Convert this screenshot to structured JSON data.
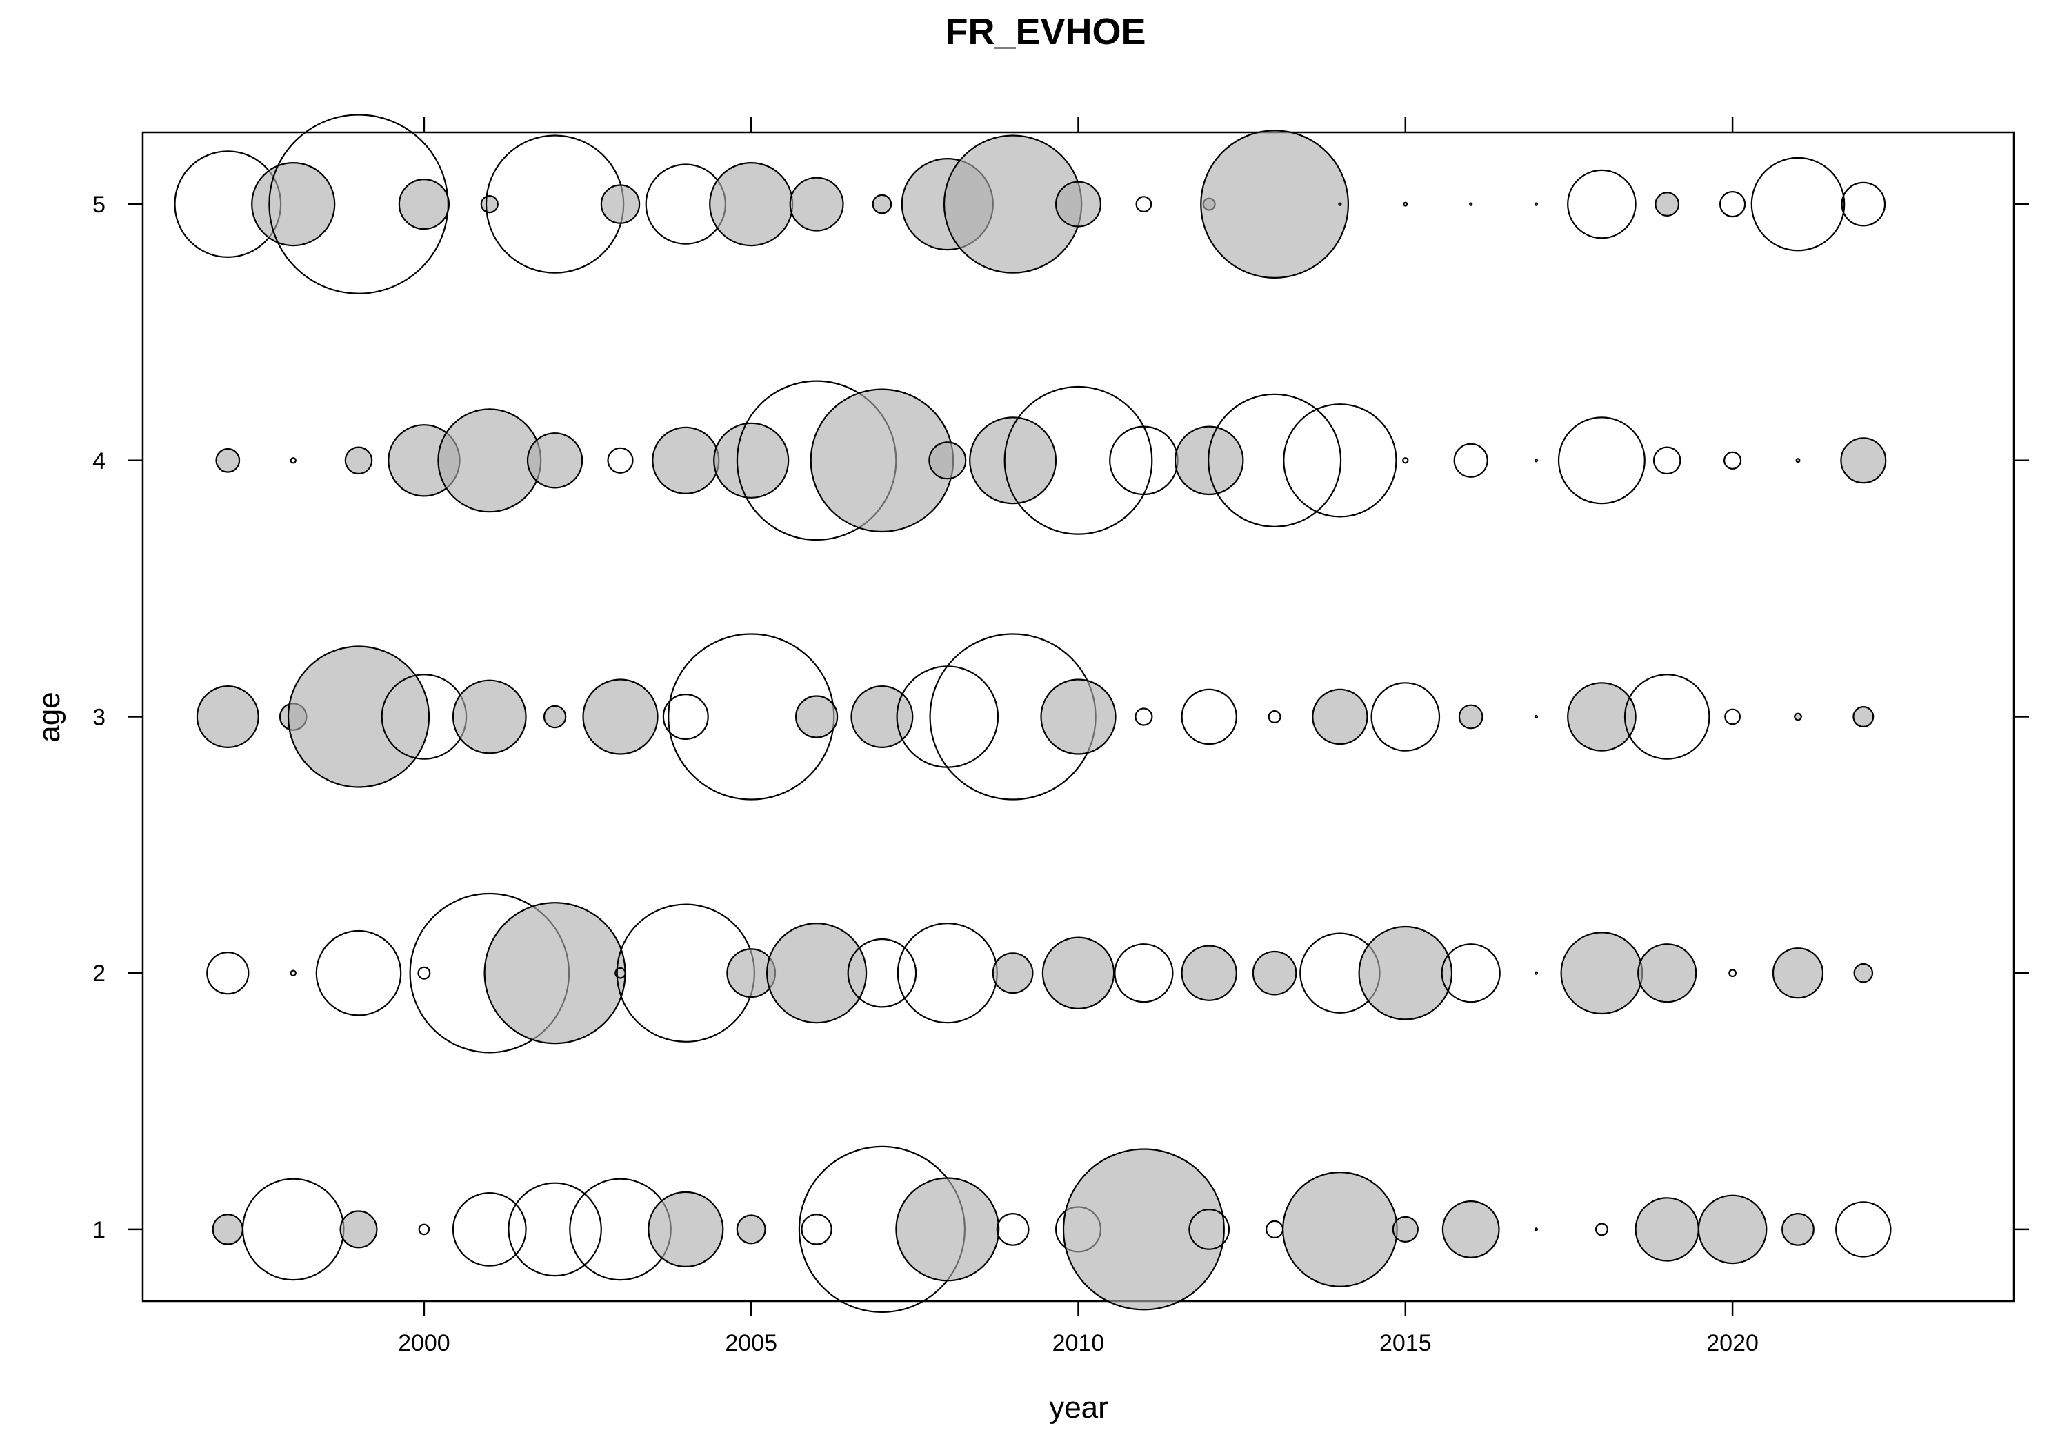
{
  "chart_data": {
    "type": "scatter",
    "subtype": "bubble",
    "title": "FR_EVHOE",
    "xlabel": "year",
    "ylabel": "age",
    "xlim": [
      1995.7,
      2024.3
    ],
    "ylim": [
      0.72,
      5.28
    ],
    "x_ticks": [
      2000,
      2005,
      2010,
      2015,
      2020
    ],
    "y_ticks": [
      1,
      2,
      3,
      4,
      5
    ],
    "grid": false,
    "legend": "none",
    "size_encoding": "bubble radius proportional to magnitude (relative units, max ~1.0)",
    "fill_legend": {
      "positive": "#ffffff",
      "negative": "#adadad"
    },
    "colors": {
      "positive_fill": "#ffffff",
      "negative_fill": "#adadad",
      "stroke": "#000000"
    },
    "series": [
      {
        "age": 1,
        "points": [
          {
            "year": 1997,
            "size": 0.18,
            "sign": "neg"
          },
          {
            "year": 1998,
            "size": 0.61,
            "sign": "pos"
          },
          {
            "year": 1999,
            "size": 0.22,
            "sign": "neg"
          },
          {
            "year": 2000,
            "size": 0.06,
            "sign": "pos"
          },
          {
            "year": 2001,
            "size": 0.44,
            "sign": "pos"
          },
          {
            "year": 2002,
            "size": 0.56,
            "sign": "pos"
          },
          {
            "year": 2003,
            "size": 0.61,
            "sign": "pos"
          },
          {
            "year": 2004,
            "size": 0.45,
            "sign": "neg"
          },
          {
            "year": 2005,
            "size": 0.17,
            "sign": "neg"
          },
          {
            "year": 2006,
            "size": 0.18,
            "sign": "pos"
          },
          {
            "year": 2007,
            "size": 1.0,
            "sign": "pos"
          },
          {
            "year": 2008,
            "size": 0.62,
            "sign": "neg"
          },
          {
            "year": 2009,
            "size": 0.19,
            "sign": "pos"
          },
          {
            "year": 2010,
            "size": 0.27,
            "sign": "pos"
          },
          {
            "year": 2011,
            "size": 0.97,
            "sign": "neg"
          },
          {
            "year": 2012,
            "size": 0.24,
            "sign": "pos"
          },
          {
            "year": 2013,
            "size": 0.1,
            "sign": "pos"
          },
          {
            "year": 2014,
            "size": 0.69,
            "sign": "neg"
          },
          {
            "year": 2015,
            "size": 0.15,
            "sign": "neg"
          },
          {
            "year": 2016,
            "size": 0.34,
            "sign": "neg"
          },
          {
            "year": 2017,
            "size": 0.01,
            "sign": "pos"
          },
          {
            "year": 2018,
            "size": 0.07,
            "sign": "pos"
          },
          {
            "year": 2019,
            "size": 0.38,
            "sign": "neg"
          },
          {
            "year": 2020,
            "size": 0.41,
            "sign": "neg"
          },
          {
            "year": 2021,
            "size": 0.19,
            "sign": "neg"
          },
          {
            "year": 2022,
            "size": 0.33,
            "sign": "pos"
          }
        ]
      },
      {
        "age": 2,
        "points": [
          {
            "year": 1997,
            "size": 0.25,
            "sign": "pos"
          },
          {
            "year": 1998,
            "size": 0.03,
            "sign": "pos"
          },
          {
            "year": 1999,
            "size": 0.51,
            "sign": "pos"
          },
          {
            "year": 2000,
            "size": 0.07,
            "sign": "pos"
          },
          {
            "year": 2001,
            "size": 0.96,
            "sign": "pos"
          },
          {
            "year": 2002,
            "size": 0.85,
            "sign": "neg"
          },
          {
            "year": 2003,
            "size": 0.06,
            "sign": "pos"
          },
          {
            "year": 2004,
            "size": 0.83,
            "sign": "pos"
          },
          {
            "year": 2005,
            "size": 0.29,
            "sign": "neg"
          },
          {
            "year": 2006,
            "size": 0.6,
            "sign": "neg"
          },
          {
            "year": 2007,
            "size": 0.41,
            "sign": "pos"
          },
          {
            "year": 2008,
            "size": 0.6,
            "sign": "pos"
          },
          {
            "year": 2009,
            "size": 0.24,
            "sign": "neg"
          },
          {
            "year": 2010,
            "size": 0.43,
            "sign": "neg"
          },
          {
            "year": 2011,
            "size": 0.35,
            "sign": "pos"
          },
          {
            "year": 2012,
            "size": 0.33,
            "sign": "neg"
          },
          {
            "year": 2013,
            "size": 0.26,
            "sign": "neg"
          },
          {
            "year": 2014,
            "size": 0.48,
            "sign": "pos"
          },
          {
            "year": 2015,
            "size": 0.56,
            "sign": "neg"
          },
          {
            "year": 2016,
            "size": 0.35,
            "sign": "pos"
          },
          {
            "year": 2017,
            "size": 0.01,
            "sign": "pos"
          },
          {
            "year": 2018,
            "size": 0.49,
            "sign": "neg"
          },
          {
            "year": 2019,
            "size": 0.35,
            "sign": "neg"
          },
          {
            "year": 2020,
            "size": 0.04,
            "sign": "pos"
          },
          {
            "year": 2021,
            "size": 0.3,
            "sign": "neg"
          },
          {
            "year": 2022,
            "size": 0.11,
            "sign": "neg"
          }
        ]
      },
      {
        "age": 3,
        "points": [
          {
            "year": 1997,
            "size": 0.37,
            "sign": "neg"
          },
          {
            "year": 1998,
            "size": 0.16,
            "sign": "neg"
          },
          {
            "year": 1999,
            "size": 0.85,
            "sign": "neg"
          },
          {
            "year": 2000,
            "size": 0.51,
            "sign": "pos"
          },
          {
            "year": 2001,
            "size": 0.44,
            "sign": "neg"
          },
          {
            "year": 2002,
            "size": 0.13,
            "sign": "neg"
          },
          {
            "year": 2003,
            "size": 0.45,
            "sign": "neg"
          },
          {
            "year": 2004,
            "size": 0.27,
            "sign": "pos"
          },
          {
            "year": 2005,
            "size": 1.0,
            "sign": "pos"
          },
          {
            "year": 2006,
            "size": 0.25,
            "sign": "neg"
          },
          {
            "year": 2007,
            "size": 0.37,
            "sign": "neg"
          },
          {
            "year": 2008,
            "size": 0.61,
            "sign": "pos"
          },
          {
            "year": 2009,
            "size": 1.0,
            "sign": "pos"
          },
          {
            "year": 2010,
            "size": 0.45,
            "sign": "neg"
          },
          {
            "year": 2011,
            "size": 0.1,
            "sign": "pos"
          },
          {
            "year": 2012,
            "size": 0.33,
            "sign": "pos"
          },
          {
            "year": 2013,
            "size": 0.07,
            "sign": "pos"
          },
          {
            "year": 2014,
            "size": 0.33,
            "sign": "neg"
          },
          {
            "year": 2015,
            "size": 0.41,
            "sign": "pos"
          },
          {
            "year": 2016,
            "size": 0.14,
            "sign": "neg"
          },
          {
            "year": 2017,
            "size": 0.01,
            "sign": "pos"
          },
          {
            "year": 2018,
            "size": 0.41,
            "sign": "neg"
          },
          {
            "year": 2019,
            "size": 0.51,
            "sign": "pos"
          },
          {
            "year": 2020,
            "size": 0.09,
            "sign": "pos"
          },
          {
            "year": 2021,
            "size": 0.04,
            "sign": "neg"
          },
          {
            "year": 2022,
            "size": 0.12,
            "sign": "neg"
          }
        ]
      },
      {
        "age": 4,
        "points": [
          {
            "year": 1997,
            "size": 0.14,
            "sign": "neg"
          },
          {
            "year": 1998,
            "size": 0.03,
            "sign": "pos"
          },
          {
            "year": 1999,
            "size": 0.16,
            "sign": "neg"
          },
          {
            "year": 2000,
            "size": 0.43,
            "sign": "neg"
          },
          {
            "year": 2001,
            "size": 0.62,
            "sign": "neg"
          },
          {
            "year": 2002,
            "size": 0.33,
            "sign": "neg"
          },
          {
            "year": 2003,
            "size": 0.15,
            "sign": "pos"
          },
          {
            "year": 2004,
            "size": 0.4,
            "sign": "neg"
          },
          {
            "year": 2005,
            "size": 0.45,
            "sign": "neg"
          },
          {
            "year": 2006,
            "size": 0.96,
            "sign": "pos"
          },
          {
            "year": 2007,
            "size": 0.86,
            "sign": "neg"
          },
          {
            "year": 2008,
            "size": 0.22,
            "sign": "neg"
          },
          {
            "year": 2009,
            "size": 0.52,
            "sign": "neg"
          },
          {
            "year": 2010,
            "size": 0.89,
            "sign": "pos"
          },
          {
            "year": 2011,
            "size": 0.41,
            "sign": "pos"
          },
          {
            "year": 2012,
            "size": 0.41,
            "sign": "neg"
          },
          {
            "year": 2013,
            "size": 0.8,
            "sign": "pos"
          },
          {
            "year": 2014,
            "size": 0.68,
            "sign": "pos"
          },
          {
            "year": 2015,
            "size": 0.03,
            "sign": "pos"
          },
          {
            "year": 2016,
            "size": 0.2,
            "sign": "pos"
          },
          {
            "year": 2017,
            "size": 0.01,
            "sign": "pos"
          },
          {
            "year": 2018,
            "size": 0.52,
            "sign": "pos"
          },
          {
            "year": 2019,
            "size": 0.16,
            "sign": "pos"
          },
          {
            "year": 2020,
            "size": 0.1,
            "sign": "pos"
          },
          {
            "year": 2021,
            "size": 0.02,
            "sign": "neg"
          },
          {
            "year": 2022,
            "size": 0.27,
            "sign": "neg"
          }
        ]
      },
      {
        "age": 5,
        "points": [
          {
            "year": 1997,
            "size": 0.64,
            "sign": "pos"
          },
          {
            "year": 1998,
            "size": 0.5,
            "sign": "neg"
          },
          {
            "year": 1999,
            "size": 1.08,
            "sign": "pos"
          },
          {
            "year": 2000,
            "size": 0.3,
            "sign": "neg"
          },
          {
            "year": 2001,
            "size": 0.1,
            "sign": "neg"
          },
          {
            "year": 2002,
            "size": 0.83,
            "sign": "pos"
          },
          {
            "year": 2003,
            "size": 0.23,
            "sign": "neg"
          },
          {
            "year": 2004,
            "size": 0.48,
            "sign": "pos"
          },
          {
            "year": 2005,
            "size": 0.5,
            "sign": "neg"
          },
          {
            "year": 2006,
            "size": 0.32,
            "sign": "neg"
          },
          {
            "year": 2007,
            "size": 0.11,
            "sign": "neg"
          },
          {
            "year": 2008,
            "size": 0.55,
            "sign": "neg"
          },
          {
            "year": 2009,
            "size": 0.83,
            "sign": "neg"
          },
          {
            "year": 2010,
            "size": 0.27,
            "sign": "neg"
          },
          {
            "year": 2011,
            "size": 0.09,
            "sign": "pos"
          },
          {
            "year": 2012,
            "size": 0.07,
            "sign": "neg"
          },
          {
            "year": 2013,
            "size": 0.89,
            "sign": "neg"
          },
          {
            "year": 2014,
            "size": 0.01,
            "sign": "pos"
          },
          {
            "year": 2015,
            "size": 0.02,
            "sign": "neg"
          },
          {
            "year": 2016,
            "size": 0.01,
            "sign": "pos"
          },
          {
            "year": 2017,
            "size": 0.01,
            "sign": "pos"
          },
          {
            "year": 2018,
            "size": 0.41,
            "sign": "pos"
          },
          {
            "year": 2019,
            "size": 0.14,
            "sign": "neg"
          },
          {
            "year": 2020,
            "size": 0.15,
            "sign": "pos"
          },
          {
            "year": 2021,
            "size": 0.56,
            "sign": "pos"
          },
          {
            "year": 2022,
            "size": 0.26,
            "sign": "pos"
          }
        ]
      }
    ]
  }
}
